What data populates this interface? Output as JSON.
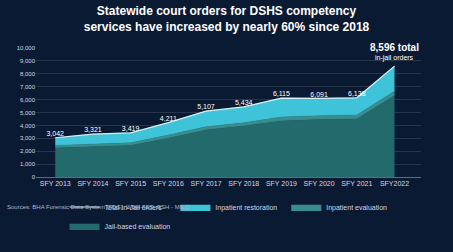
{
  "chart_data": {
    "type": "area",
    "title": "Statewide court orders for DSHS competency services have increased by nearly 60% since 2018",
    "source": "Sources: BHA Forensic Data System (FDS), WSH-FES; ESH - MILO",
    "categories": [
      "SFY 2013",
      "SFY 2014",
      "SFY 2015",
      "SFY 2016",
      "SFY 2017",
      "SFY 2018",
      "SFY 2019",
      "SFY 2020",
      "SFY 2021",
      "SFY2022"
    ],
    "stacked": true,
    "grid": true,
    "legend": "bottom",
    "ylim": [
      0,
      10000
    ],
    "yticks": [
      0,
      {
        "value": 1000,
        "label": "1,000"
      },
      {
        "value": 2000,
        "label": "2,000"
      },
      {
        "value": 3000,
        "label": "3,000"
      },
      {
        "value": 4000,
        "label": "4,000"
      },
      {
        "value": 5000,
        "label": "5,000"
      },
      {
        "value": 6000,
        "label": "6,000"
      },
      {
        "value": 7000,
        "label": "7,000"
      },
      {
        "value": 8000,
        "label": "8,000"
      },
      {
        "value": 9000,
        "label": "9,000"
      },
      {
        "value": 10000,
        "label": "10,000"
      }
    ],
    "series": [
      {
        "name": "Jail-based evaluation",
        "type": "area",
        "color": "#236a6c",
        "values": [
          2250,
          2350,
          2450,
          3000,
          3650,
          3950,
          4350,
          4450,
          4500,
          6300
        ]
      },
      {
        "name": "Inpatient evaluation",
        "type": "area",
        "color": "#3a8d8f",
        "values": [
          200,
          200,
          200,
          250,
          250,
          250,
          300,
          300,
          300,
          350
        ]
      },
      {
        "name": "Inpatient restoration",
        "type": "area",
        "color": "#3ec3d8",
        "values": [
          590,
          770,
          770,
          960,
          1210,
          1230,
          1470,
          1340,
          1340,
          1950
        ]
      },
      {
        "name": "Total In-Jail orders",
        "type": "line",
        "color": "#d8f1f6",
        "data_labels": true,
        "values": [
          3042,
          3321,
          3419,
          4211,
          5107,
          5434,
          6115,
          6091,
          6138,
          8596
        ],
        "value_labels": [
          "3,042",
          "3,321",
          "3,419",
          "4,211",
          "5,107",
          "5,434",
          "6,115",
          "6,091",
          "6,138",
          "8,596 total"
        ]
      }
    ],
    "annotations": [
      {
        "text": "in-jail orders",
        "category": "SFY2022"
      }
    ]
  }
}
